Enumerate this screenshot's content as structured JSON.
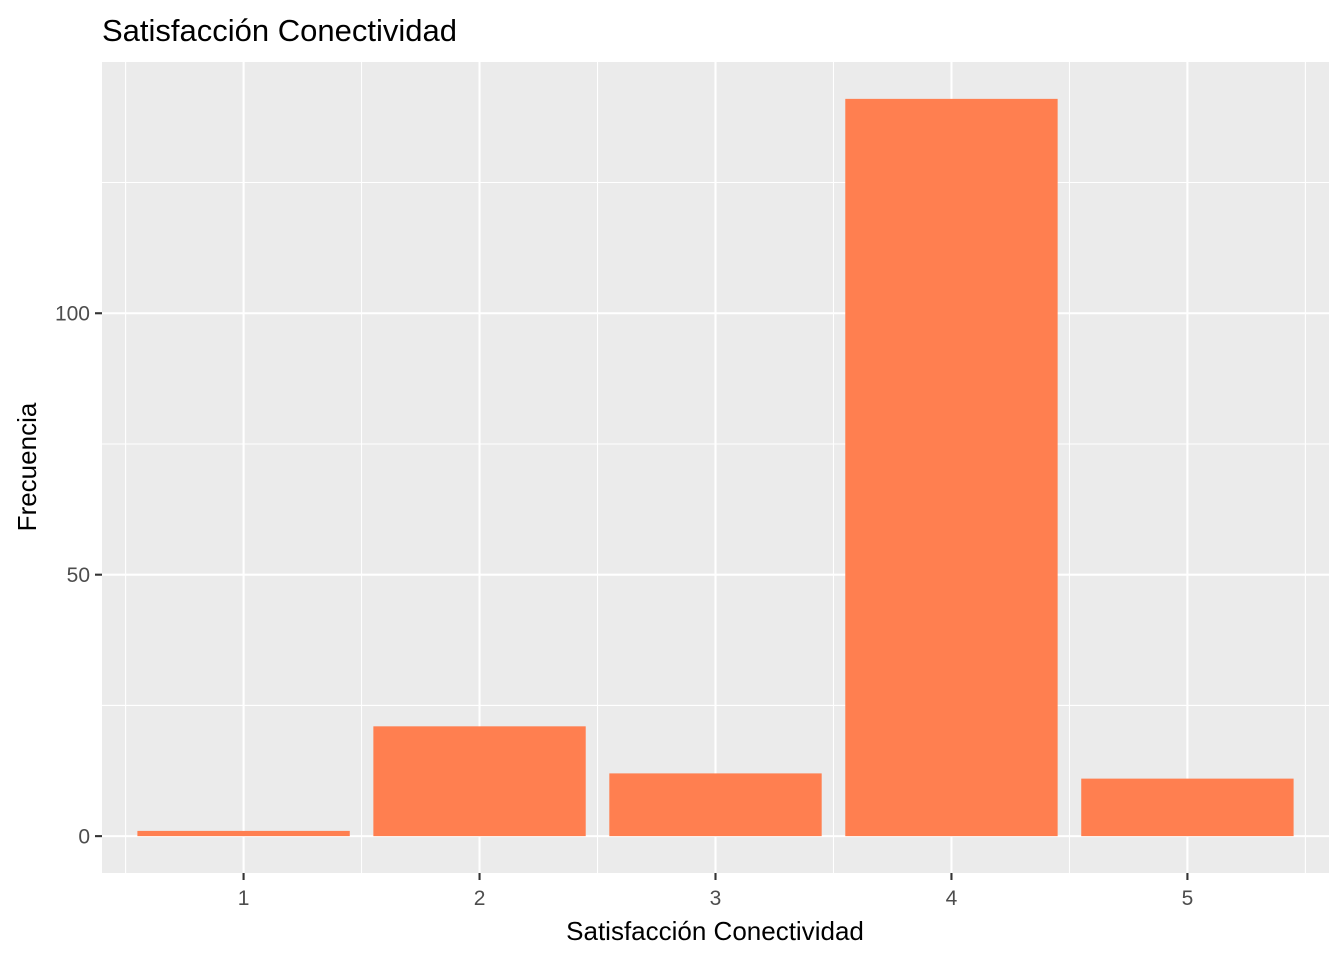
{
  "chart_data": {
    "type": "bar",
    "title": "Satisfacción Conectividad",
    "xlabel": "Satisfacción Conectividad",
    "ylabel": "Frecuencia",
    "categories": [
      "1",
      "2",
      "3",
      "4",
      "5"
    ],
    "values": [
      1,
      21,
      12,
      141,
      11
    ],
    "yticks": [
      0,
      50,
      100
    ],
    "ylim": [
      -7.05,
      148.05
    ],
    "bar_color": "#ff7f50",
    "panel_background": "#ebebeb",
    "grid": true,
    "legend": "none"
  }
}
